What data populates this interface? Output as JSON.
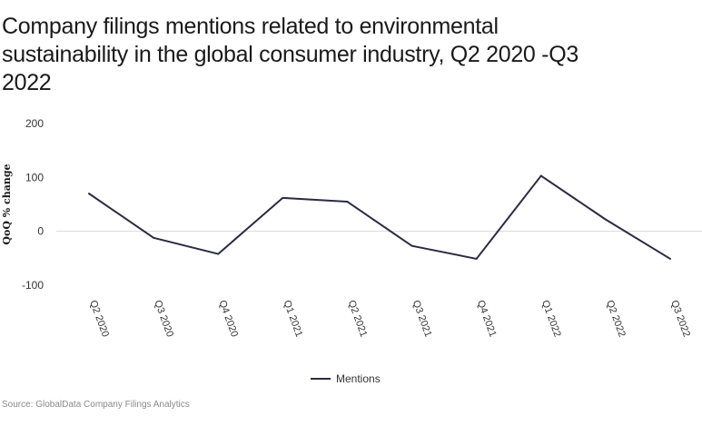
{
  "title": "Company filings mentions related to environmental sustainability in the global consumer industry, Q2 2020 -Q3 2022",
  "source": "Source: GlobalData Company Filings Analytics",
  "chart_data": {
    "type": "line",
    "categories": [
      "Q2 2020",
      "Q3 2020",
      "Q4 2020",
      "Q1 2021",
      "Q2 2021",
      "Q3 2021",
      "Q4 2021",
      "Q1 2022",
      "Q2 2022",
      "Q3 2022"
    ],
    "series": [
      {
        "name": "Mentions",
        "values": [
          70,
          -12,
          -42,
          62,
          55,
          -27,
          -51,
          103,
          22,
          -51
        ],
        "color": "#2b2a42"
      }
    ],
    "ylabel": "QoQ % change",
    "xlabel": "",
    "ylim": [
      -100,
      200
    ],
    "yticks": [
      200,
      100,
      0,
      -100
    ],
    "grid": "zero-line",
    "legend": "bottom-center"
  }
}
